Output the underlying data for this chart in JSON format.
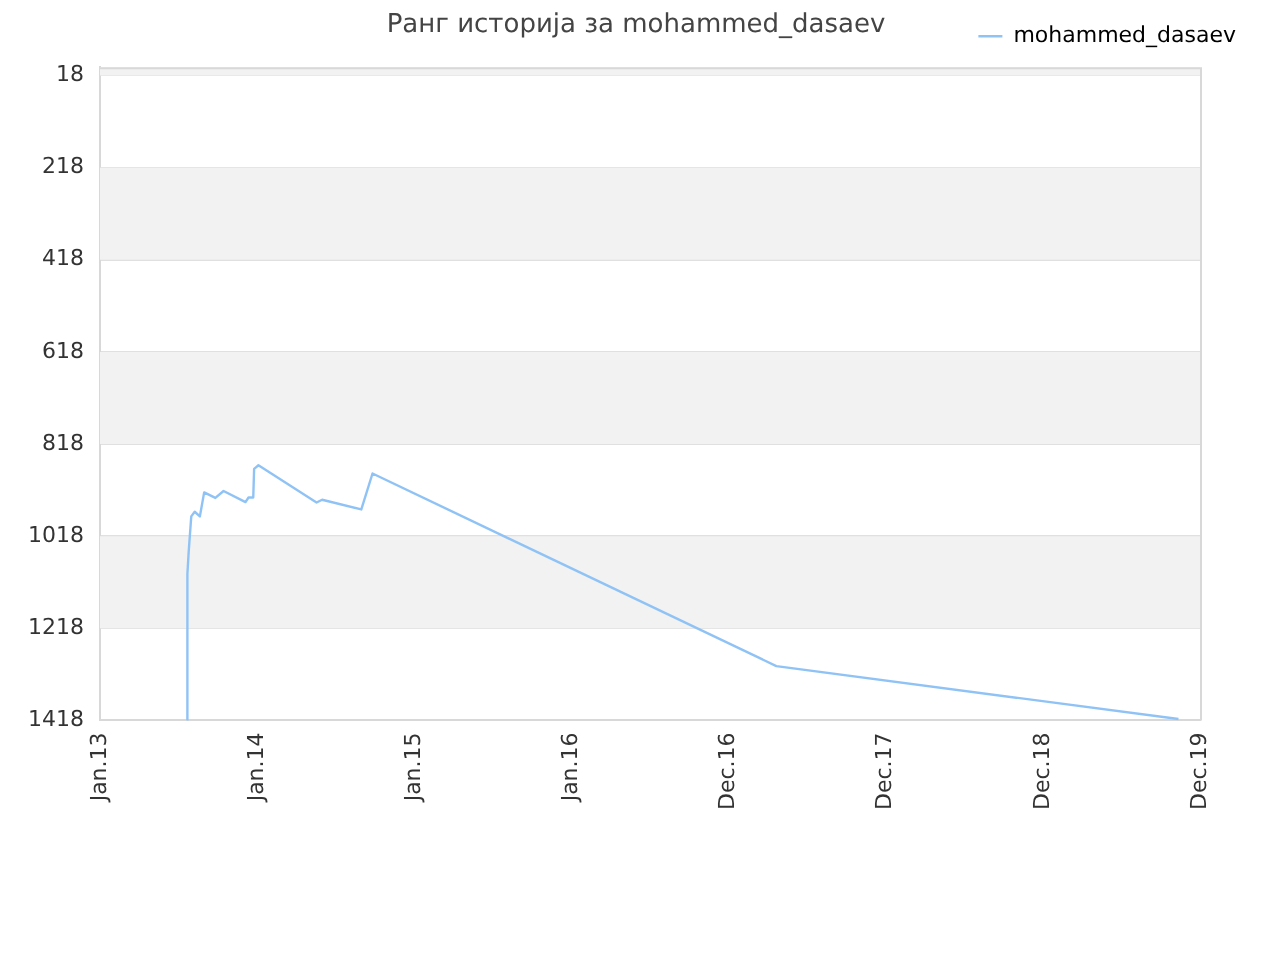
{
  "chart_data": {
    "type": "line",
    "title": "Ранг историја за mohammed_dasaev",
    "x": [
      "2013-07-22",
      "2013-07-23",
      "2013-07-26",
      "2013-08-01",
      "2013-08-09",
      "2013-08-21",
      "2013-08-31",
      "2013-09-26",
      "2013-10-15",
      "2013-12-05",
      "2013-12-12",
      "2013-12-23",
      "2013-12-25",
      "2014-01-04",
      "2014-05-19",
      "2014-06-01",
      "2014-08-31",
      "2014-09-26",
      "2017-04-21",
      "2019-11-11"
    ],
    "series": [
      {
        "name": "mohammed_dasaev",
        "color": "#90c3f5",
        "values": [
          1418,
          1100,
          1052,
          975,
          965,
          975,
          923,
          935,
          920,
          944,
          934,
          934,
          872,
          864,
          945,
          939,
          960,
          882,
          1300,
          1415
        ]
      }
    ],
    "xlim": [
      "2013-01-01",
      "2019-12-31"
    ],
    "xticks": [
      {
        "value": "2013-01-01",
        "label": "Jan.13"
      },
      {
        "value": "2014-01-01",
        "label": "Jan.14"
      },
      {
        "value": "2015-01-01",
        "label": "Jan.15"
      },
      {
        "value": "2016-01-01",
        "label": "Jan.16"
      },
      {
        "value": "2016-12-31",
        "label": "Dec.16"
      },
      {
        "value": "2017-12-31",
        "label": "Dec.17"
      },
      {
        "value": "2018-12-31",
        "label": "Dec.18"
      },
      {
        "value": "2019-12-31",
        "label": "Dec.19"
      }
    ],
    "ylim": [
      1418,
      0
    ],
    "yticks": [
      18,
      218,
      418,
      618,
      818,
      1018,
      1218,
      1418
    ],
    "bands": [
      {
        "axis": "y",
        "from": 0,
        "to": 18,
        "color": "#f2f2f2"
      },
      {
        "axis": "y",
        "from": 218,
        "to": 418,
        "color": "#f2f2f2"
      },
      {
        "axis": "y",
        "from": 618,
        "to": 818,
        "color": "#f2f2f2"
      },
      {
        "axis": "y",
        "from": 1018,
        "to": 1218,
        "color": "#f2f2f2"
      }
    ],
    "grid": "y",
    "legend": "top right"
  }
}
